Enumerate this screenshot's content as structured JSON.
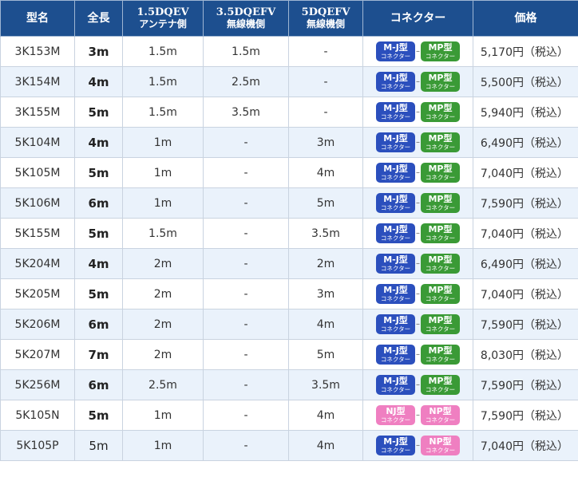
{
  "headers": {
    "model": "型名",
    "length": "全長",
    "c1_main": "1.5DQEV",
    "c1_sub": "アンテナ側",
    "c2_main": "3.5DQEFV",
    "c2_sub": "無線機側",
    "c3_main": "5DQEFV",
    "c3_sub": "無線機側",
    "connector": "コネクター",
    "price": "価格"
  },
  "connector_sub": "コネクター",
  "connector_sep": "–",
  "colors": {
    "header_bg": "#1d4f8f",
    "mj": "#2b4fbd",
    "mp": "#3a9a36",
    "nj_np": "#ef7fc1",
    "row_alt": "#eaf2fb"
  },
  "rows": [
    {
      "model": "3K153M",
      "length": "3m",
      "c1": "1.5m",
      "c2": "1.5m",
      "c3": "-",
      "left": "M-J型",
      "right": "MP型",
      "left_color": "blue",
      "right_color": "green",
      "price": "5,170円（税込）"
    },
    {
      "model": "3K154M",
      "length": "4m",
      "c1": "1.5m",
      "c2": "2.5m",
      "c3": "-",
      "left": "M-J型",
      "right": "MP型",
      "left_color": "blue",
      "right_color": "green",
      "price": "5,500円（税込）"
    },
    {
      "model": "3K155M",
      "length": "5m",
      "c1": "1.5m",
      "c2": "3.5m",
      "c3": "-",
      "left": "M-J型",
      "right": "MP型",
      "left_color": "blue",
      "right_color": "green",
      "price": "5,940円（税込）"
    },
    {
      "model": "5K104M",
      "length": "4m",
      "c1": "1m",
      "c2": "-",
      "c3": "3m",
      "left": "M-J型",
      "right": "MP型",
      "left_color": "blue",
      "right_color": "green",
      "price": "6,490円（税込）"
    },
    {
      "model": "5K105M",
      "length": "5m",
      "c1": "1m",
      "c2": "-",
      "c3": "4m",
      "left": "M-J型",
      "right": "MP型",
      "left_color": "blue",
      "right_color": "green",
      "price": "7,040円（税込）"
    },
    {
      "model": "5K106M",
      "length": "6m",
      "c1": "1m",
      "c2": "-",
      "c3": "5m",
      "left": "M-J型",
      "right": "MP型",
      "left_color": "blue",
      "right_color": "green",
      "price": "7,590円（税込）"
    },
    {
      "model": "5K155M",
      "length": "5m",
      "c1": "1.5m",
      "c2": "-",
      "c3": "3.5m",
      "left": "M-J型",
      "right": "MP型",
      "left_color": "blue",
      "right_color": "green",
      "price": "7,040円（税込）"
    },
    {
      "model": "5K204M",
      "length": "4m",
      "c1": "2m",
      "c2": "-",
      "c3": "2m",
      "left": "M-J型",
      "right": "MP型",
      "left_color": "blue",
      "right_color": "green",
      "price": "6,490円（税込）"
    },
    {
      "model": "5K205M",
      "length": "5m",
      "c1": "2m",
      "c2": "-",
      "c3": "3m",
      "left": "M-J型",
      "right": "MP型",
      "left_color": "blue",
      "right_color": "green",
      "price": "7,040円（税込）"
    },
    {
      "model": "5K206M",
      "length": "6m",
      "c1": "2m",
      "c2": "-",
      "c3": "4m",
      "left": "M-J型",
      "right": "MP型",
      "left_color": "blue",
      "right_color": "green",
      "price": "7,590円（税込）"
    },
    {
      "model": "5K207M",
      "length": "7m",
      "c1": "2m",
      "c2": "-",
      "c3": "5m",
      "left": "M-J型",
      "right": "MP型",
      "left_color": "blue",
      "right_color": "green",
      "price": "8,030円（税込）"
    },
    {
      "model": "5K256M",
      "length": "6m",
      "c1": "2.5m",
      "c2": "-",
      "c3": "3.5m",
      "left": "M-J型",
      "right": "MP型",
      "left_color": "blue",
      "right_color": "green",
      "price": "7,590円（税込）"
    },
    {
      "model": "5K105N",
      "length": "5m",
      "c1": "1m",
      "c2": "-",
      "c3": "4m",
      "left": "NJ型",
      "right": "NP型",
      "left_color": "pink",
      "right_color": "pink",
      "price": "7,590円（税込）"
    },
    {
      "model": "5K105P",
      "length": "5m",
      "c1": "1m",
      "c2": "-",
      "c3": "4m",
      "left": "M-J型",
      "right": "NP型",
      "left_color": "blue",
      "right_color": "pink",
      "price": "7,040円（税込）",
      "length_bold": false
    }
  ]
}
